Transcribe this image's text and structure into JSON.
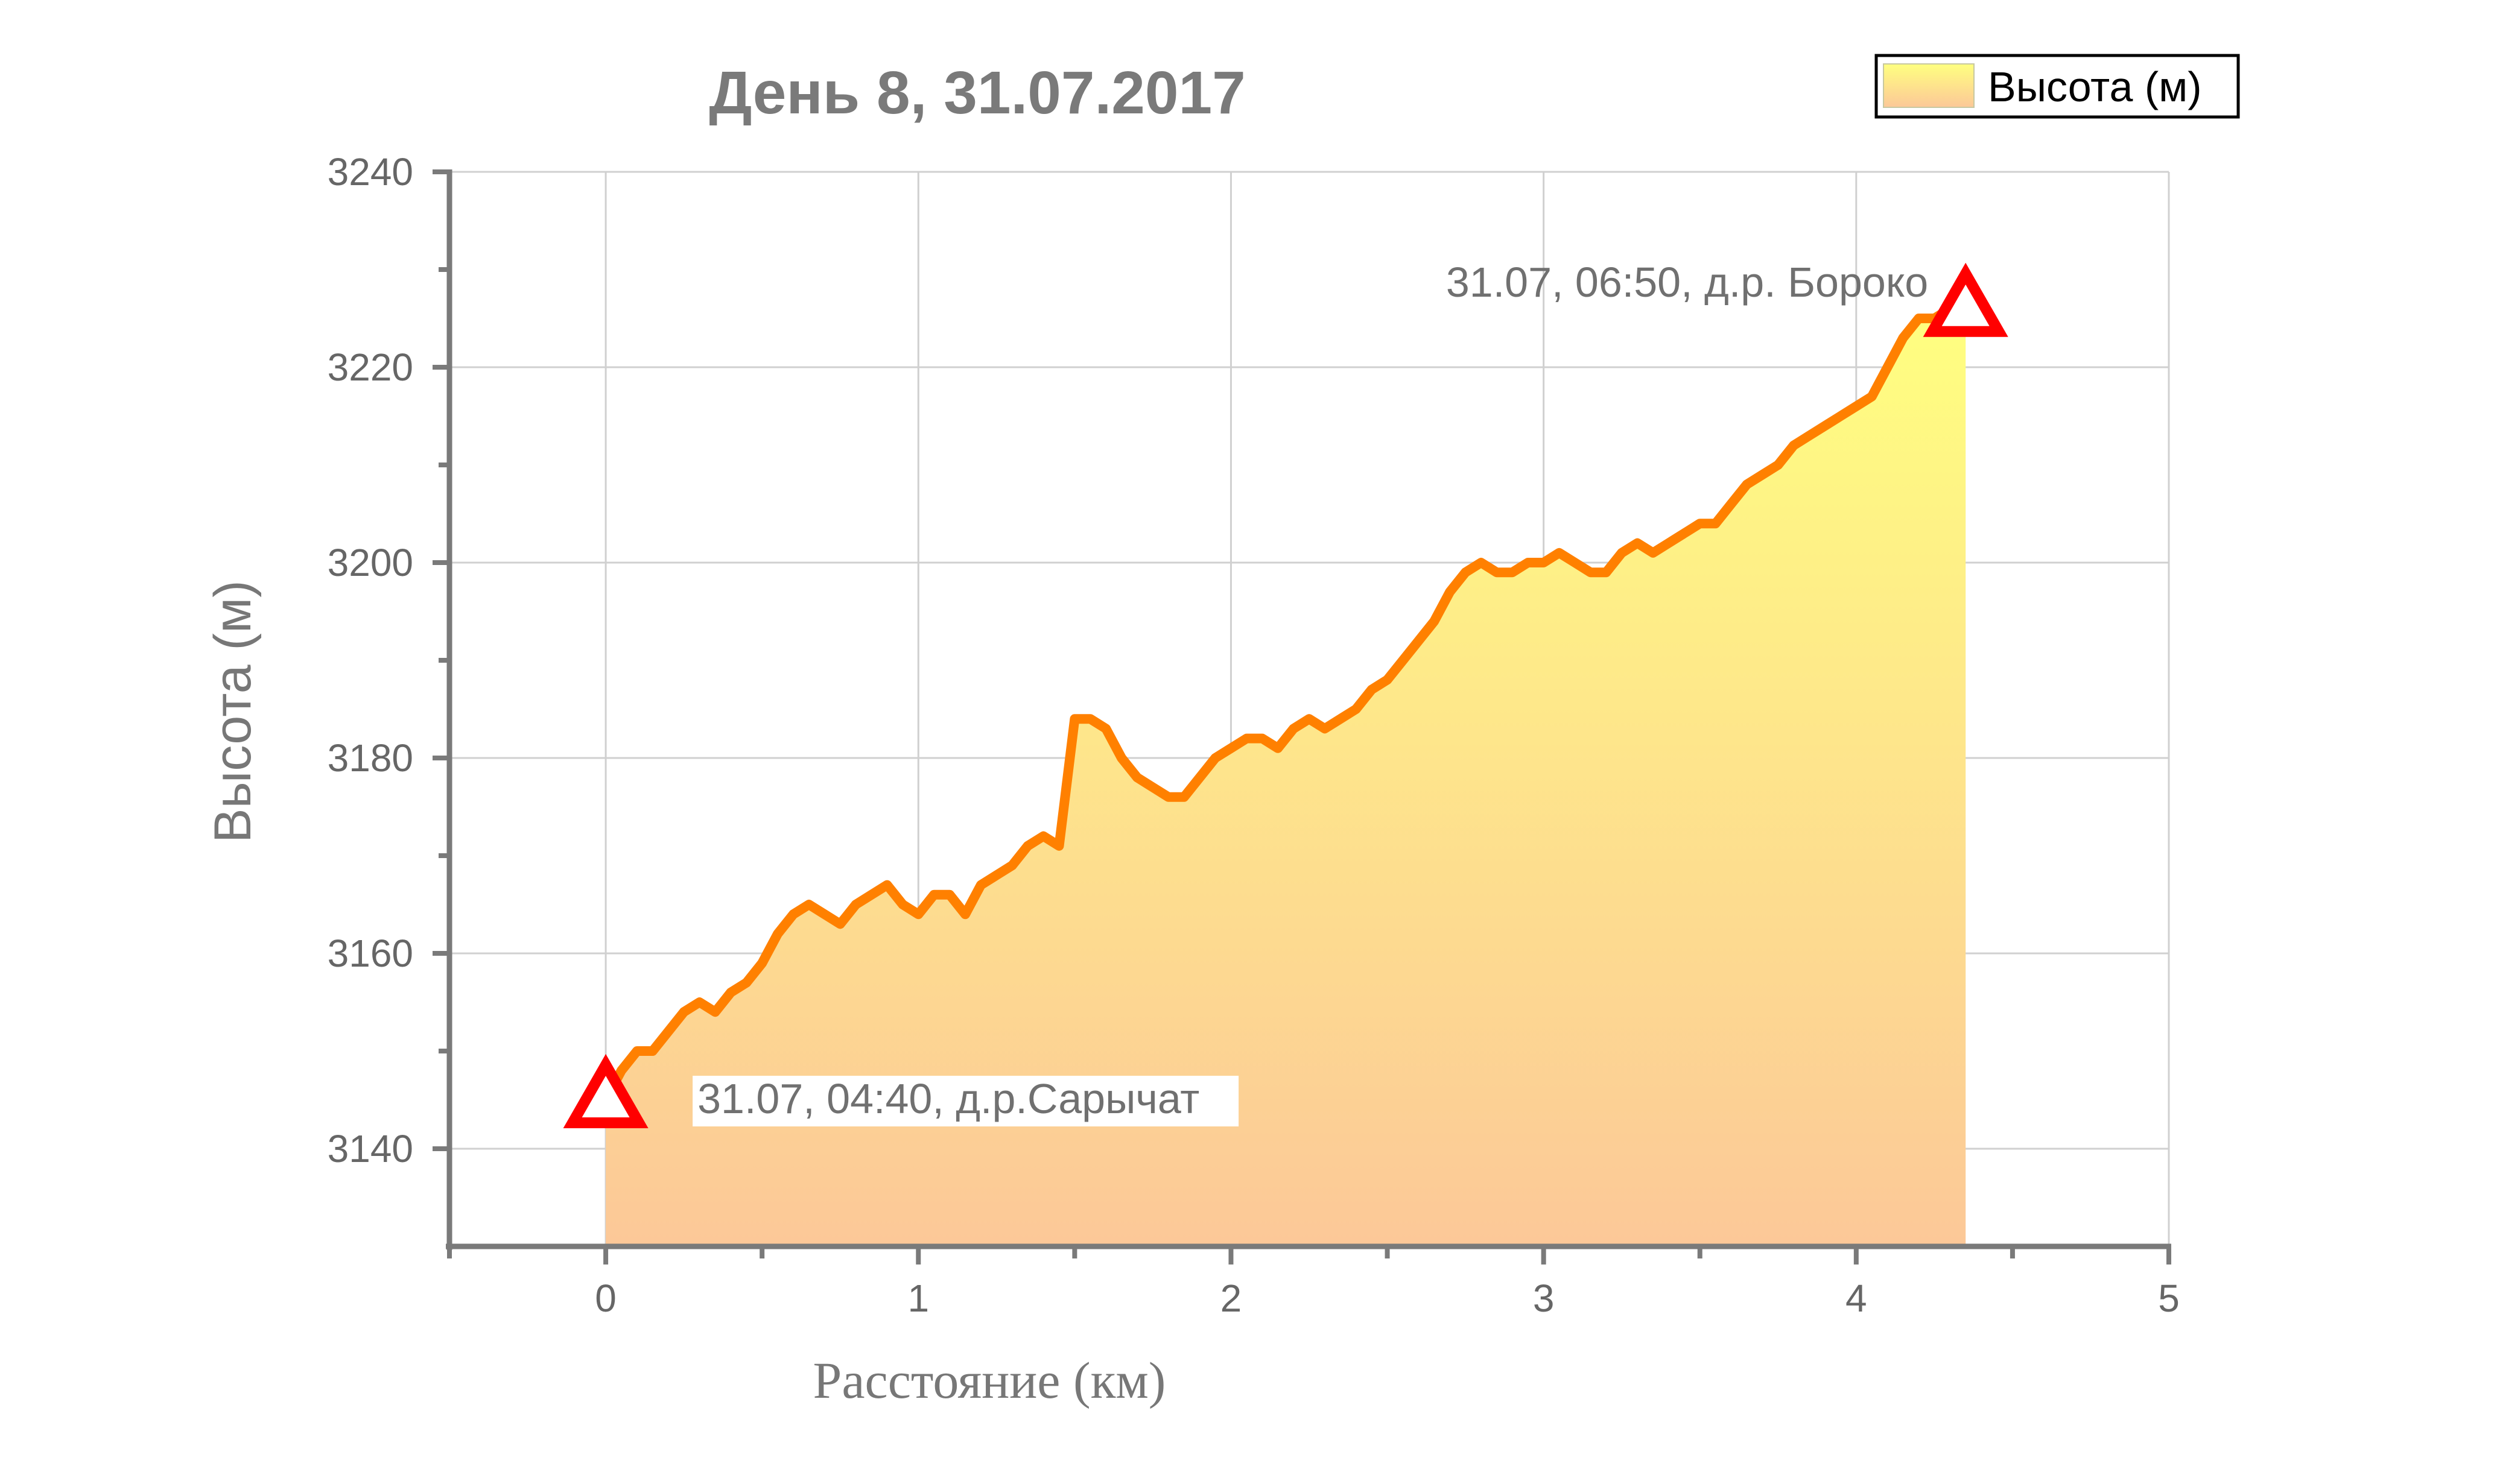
{
  "chart_data": {
    "type": "area",
    "title": "День 8, 31.07.2017",
    "xlabel": "Расстояние (км)",
    "ylabel": "Высота (м)",
    "xlim": [
      -0.5,
      5
    ],
    "ylim": [
      3130,
      3240
    ],
    "xticks": [
      "0",
      "1",
      "2",
      "3",
      "4",
      "5"
    ],
    "yticks": [
      "3140",
      "3160",
      "3180",
      "3200",
      "3220",
      "3240"
    ],
    "grid": true,
    "legend_position": "top-right",
    "legend": "Высота (м)",
    "series": [
      {
        "name": "Высота (м)",
        "color": "#ff8000",
        "x": [
          0.0,
          0.05,
          0.1,
          0.15,
          0.2,
          0.25,
          0.3,
          0.35,
          0.4,
          0.45,
          0.5,
          0.55,
          0.6,
          0.65,
          0.7,
          0.75,
          0.8,
          0.85,
          0.9,
          0.95,
          1.0,
          1.05,
          1.1,
          1.15,
          1.2,
          1.25,
          1.3,
          1.35,
          1.4,
          1.45,
          1.5,
          1.55,
          1.6,
          1.65,
          1.7,
          1.75,
          1.8,
          1.85,
          1.9,
          1.95,
          2.0,
          2.05,
          2.1,
          2.15,
          2.2,
          2.25,
          2.3,
          2.35,
          2.4,
          2.45,
          2.5,
          2.55,
          2.6,
          2.65,
          2.7,
          2.75,
          2.8,
          2.85,
          2.9,
          2.95,
          3.0,
          3.05,
          3.1,
          3.15,
          3.2,
          3.25,
          3.3,
          3.35,
          3.4,
          3.45,
          3.5,
          3.55,
          3.6,
          3.65,
          3.7,
          3.75,
          3.8,
          3.85,
          3.9,
          3.95,
          4.0,
          4.05,
          4.1,
          4.15,
          4.2,
          4.25,
          4.3,
          4.35
        ],
        "values": [
          3145,
          3148,
          3150,
          3150,
          3152,
          3154,
          3155,
          3154,
          3156,
          3157,
          3159,
          3162,
          3164,
          3165,
          3164,
          3163,
          3165,
          3166,
          3167,
          3165,
          3164,
          3166,
          3166,
          3164,
          3167,
          3168,
          3169,
          3171,
          3172,
          3171,
          3184,
          3184,
          3183,
          3180,
          3178,
          3177,
          3176,
          3176,
          3178,
          3180,
          3181,
          3182,
          3182,
          3181,
          3183,
          3184,
          3183,
          3184,
          3185,
          3187,
          3188,
          3190,
          3192,
          3194,
          3197,
          3199,
          3200,
          3199,
          3199,
          3200,
          3200,
          3201,
          3200,
          3199,
          3199,
          3201,
          3202,
          3201,
          3202,
          3203,
          3204,
          3204,
          3206,
          3208,
          3209,
          3210,
          3212,
          3213,
          3214,
          3215,
          3216,
          3217,
          3220,
          3223,
          3225,
          3225,
          3226,
          3226
        ]
      }
    ],
    "markers": [
      {
        "x": 0.0,
        "y": 3145,
        "label": "31.07, 04:40, д.р.Сарычат"
      },
      {
        "x": 4.35,
        "y": 3226,
        "label": "31.07, 06:50, д.р. Бороко"
      }
    ]
  },
  "colors": {
    "line": "#ff8000",
    "fill_top": "#ffff80",
    "fill_bottom": "#fcc898",
    "marker": "#ff0000",
    "grid": "#d0d0d0",
    "axis": "#7a7a7a"
  }
}
